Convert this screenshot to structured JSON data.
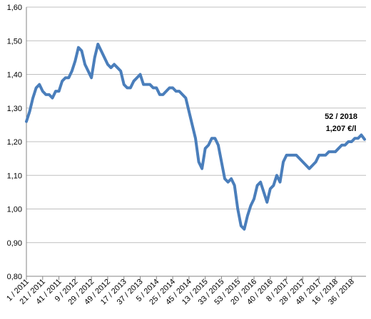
{
  "chart_data": {
    "type": "line",
    "categories": [
      "1 / 2011",
      null,
      null,
      null,
      null,
      "21 / 2011",
      null,
      null,
      null,
      null,
      "41 / 2011",
      null,
      null,
      null,
      null,
      "9 / 2012",
      null,
      null,
      null,
      null,
      "29 / 2012",
      null,
      null,
      null,
      null,
      "49 / 2012",
      null,
      null,
      null,
      null,
      "17 / 2013",
      null,
      null,
      null,
      null,
      "37 / 2013",
      null,
      null,
      null,
      null,
      "5 / 2014",
      null,
      null,
      null,
      null,
      "25 / 2014",
      null,
      null,
      null,
      null,
      "45 / 2014",
      null,
      null,
      null,
      null,
      "13 / 2015",
      null,
      null,
      null,
      null,
      "33 / 2015",
      null,
      null,
      null,
      null,
      "53 / 2015",
      null,
      null,
      null,
      null,
      "20 / 2016",
      null,
      null,
      null,
      null,
      "40 / 2016",
      null,
      null,
      null,
      null,
      "8 / 2017",
      null,
      null,
      null,
      null,
      "28 / 2017",
      null,
      null,
      null,
      null,
      "48 / 2017",
      null,
      null,
      null,
      null,
      "16 / 2018",
      null,
      null,
      null,
      null,
      "36 / 2018",
      null,
      null,
      null,
      null
    ],
    "series": [
      {
        "color": "#4a7ebb",
        "values": [
          1.26,
          1.29,
          1.33,
          1.36,
          1.37,
          1.35,
          1.34,
          1.34,
          1.33,
          1.35,
          1.35,
          1.38,
          1.39,
          1.39,
          1.41,
          1.44,
          1.48,
          1.47,
          1.43,
          1.41,
          1.39,
          1.45,
          1.49,
          1.47,
          1.45,
          1.43,
          1.42,
          1.43,
          1.42,
          1.41,
          1.37,
          1.36,
          1.36,
          1.38,
          1.39,
          1.4,
          1.37,
          1.37,
          1.37,
          1.36,
          1.36,
          1.34,
          1.34,
          1.35,
          1.36,
          1.36,
          1.35,
          1.35,
          1.34,
          1.33,
          1.29,
          1.25,
          1.21,
          1.14,
          1.12,
          1.18,
          1.19,
          1.21,
          1.21,
          1.19,
          1.14,
          1.09,
          1.08,
          1.09,
          1.07,
          1.0,
          0.95,
          0.94,
          0.98,
          1.01,
          1.03,
          1.07,
          1.08,
          1.05,
          1.02,
          1.06,
          1.07,
          1.1,
          1.08,
          1.14,
          1.16,
          1.16,
          1.16,
          1.16,
          1.15,
          1.14,
          1.13,
          1.12,
          1.13,
          1.14,
          1.16,
          1.16,
          1.16,
          1.17,
          1.17,
          1.17,
          1.18,
          1.19,
          1.19,
          1.2,
          1.2,
          1.21,
          1.21,
          1.22,
          1.207
        ]
      }
    ],
    "annotations": [
      "52 / 2018",
      "1,207 €/l"
    ],
    "ylim": [
      0.8,
      1.6
    ],
    "yticks": [
      {
        "value": 0.8,
        "label": "0,80"
      },
      {
        "value": 0.9,
        "label": "0,90"
      },
      {
        "value": 1.0,
        "label": "1,00"
      },
      {
        "value": 1.1,
        "label": "1,10"
      },
      {
        "value": 1.2,
        "label": "1,20"
      },
      {
        "value": 1.3,
        "label": "1,30"
      },
      {
        "value": 1.4,
        "label": "1,40"
      },
      {
        "value": 1.5,
        "label": "1,50"
      },
      {
        "value": 1.6,
        "label": "1,60"
      }
    ],
    "grid": true
  }
}
